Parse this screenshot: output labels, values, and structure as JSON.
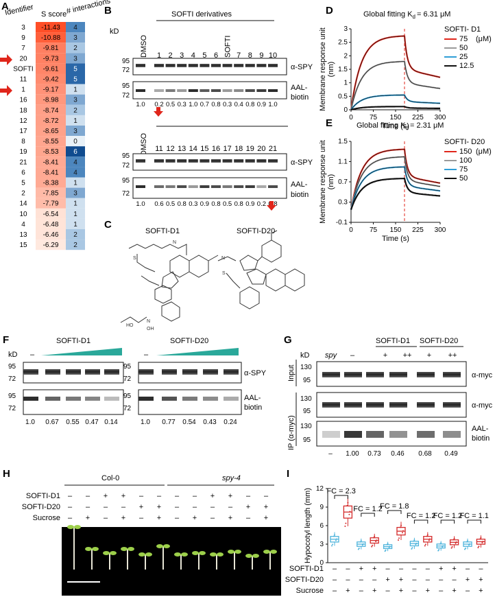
{
  "panels": {
    "A": "A",
    "B": "B",
    "C": "C",
    "D": "D",
    "E": "E",
    "F": "F",
    "G": "G",
    "H": "H",
    "I": "I"
  },
  "panelA": {
    "headers": [
      "Identifier",
      "S score",
      "# interactions"
    ],
    "rows": [
      {
        "id": "3",
        "score": "-11.43",
        "inter": "4"
      },
      {
        "id": "9",
        "score": "-10.88",
        "inter": "3"
      },
      {
        "id": "7",
        "score": "-9.81",
        "inter": "2"
      },
      {
        "id": "20",
        "score": "-9.73",
        "inter": "3"
      },
      {
        "id": "SOFTI",
        "score": "-9.61",
        "inter": "5"
      },
      {
        "id": "11",
        "score": "-9.42",
        "inter": "5"
      },
      {
        "id": "1",
        "score": "-9.17",
        "inter": "1"
      },
      {
        "id": "16",
        "score": "-8.98",
        "inter": "3"
      },
      {
        "id": "18",
        "score": "-8.74",
        "inter": "2"
      },
      {
        "id": "12",
        "score": "-8.72",
        "inter": "1"
      },
      {
        "id": "17",
        "score": "-8.65",
        "inter": "3"
      },
      {
        "id": "8",
        "score": "-8.55",
        "inter": "0"
      },
      {
        "id": "19",
        "score": "-8.53",
        "inter": "6"
      },
      {
        "id": "21",
        "score": "-8.41",
        "inter": "4"
      },
      {
        "id": "6",
        "score": "-8.41",
        "inter": "4"
      },
      {
        "id": "5",
        "score": "-8.38",
        "inter": "1"
      },
      {
        "id": "2",
        "score": "-7.85",
        "inter": "3"
      },
      {
        "id": "14",
        "score": "-7.79",
        "inter": "1"
      },
      {
        "id": "10",
        "score": "-6.54",
        "inter": "1"
      },
      {
        "id": "4",
        "score": "-6.48",
        "inter": "1"
      },
      {
        "id": "13",
        "score": "-6.46",
        "inter": "2"
      },
      {
        "id": "15",
        "score": "-6.29",
        "inter": "2"
      }
    ]
  },
  "panelB": {
    "title": "SOFTI derivatives",
    "kd": "kD",
    "dmso": "DMSO",
    "lanes_top": [
      "1",
      "2",
      "3",
      "4",
      "5",
      "6",
      "SOFTI",
      "7",
      "8",
      "9",
      "10"
    ],
    "lanes_bottom": [
      "11",
      "12",
      "13",
      "14",
      "15",
      "16",
      "17",
      "18",
      "19",
      "20",
      "21"
    ],
    "mw_95": "95",
    "mw_72": "72",
    "spy": "α-SPY",
    "aal": "AAL-",
    "biotin": "biotin",
    "quant_top": [
      "1.0",
      "0.2",
      "0.5",
      "0.3",
      "1.0",
      "0.7",
      "0.8",
      "0.3",
      "0.4",
      "0.8",
      "0.9",
      "1.0"
    ],
    "quant_bottom": [
      "1.0",
      "0.6",
      "0.5",
      "0.8",
      "0.3",
      "0.9",
      "0.8",
      "0.5",
      "0.8",
      "0.9",
      "0.2",
      "0.8"
    ]
  },
  "panelC": {
    "d1": "SOFTI-D1",
    "d20": "SOFTI-D20"
  },
  "panelD": {
    "title": "Global fitting K",
    "sub": "d",
    "kdval": "=  6.31 μM",
    "legend_title": "SOFTI- D1",
    "unit": "(μM)",
    "legend": [
      "75",
      "50",
      "25",
      "12.5"
    ],
    "colors": [
      "#e0261b",
      "#9a9a9a",
      "#2f9ed6",
      "#111111"
    ],
    "xlabel": "Time (s)",
    "ylabel": "Membrane response unit",
    "ylabel2": "(nm)",
    "xticks": [
      "0",
      "75",
      "150",
      "225",
      "300"
    ],
    "yticks": [
      "0",
      "0.5",
      "1",
      "1.5",
      "2",
      "2.5",
      "3"
    ]
  },
  "panelE": {
    "title": "Global fitting K",
    "sub": "d",
    "kdval": "=  2.31 μM",
    "legend_title": "SOFTI- D20",
    "unit": "(μM)",
    "legend": [
      "150",
      "100",
      "75",
      "50"
    ],
    "colors": [
      "#e0261b",
      "#9a9a9a",
      "#2f9ed6",
      "#111111"
    ],
    "xlabel": "Time (s)",
    "ylabel": "Membrane response unit",
    "ylabel2": "(nm)",
    "xticks": [
      "0",
      "75",
      "150",
      "225",
      "300"
    ],
    "yticks": [
      "-0.1",
      "0.3",
      "0.7",
      "1.1",
      "1.5"
    ]
  },
  "panelF": {
    "kd": "kD",
    "d1": "SOFTI-D1",
    "d20": "SOFTI-D20",
    "minus": "–",
    "mw_95": "95",
    "mw_72": "72",
    "spy": "α-SPY",
    "aal": "AAL-",
    "biotin": "biotin",
    "quant_d1": [
      "1.0",
      "0.67",
      "0.55",
      "0.47",
      "0.14"
    ],
    "quant_d20": [
      "1.0",
      "0.77",
      "0.54",
      "0.43",
      "0.24"
    ]
  },
  "panelG": {
    "kd": "kD",
    "spy": "spy",
    "d1": "SOFTI-D1",
    "d20": "SOFTI-D20",
    "cond": [
      "–",
      "+",
      "++",
      "+",
      "++"
    ],
    "input": "Input",
    "ip": "IP (α-myc)",
    "myc": "α-myc",
    "aal": "AAL-",
    "biotin": "biotin",
    "mw": [
      "130",
      "95",
      "130",
      "95",
      "130",
      "95"
    ],
    "quant": [
      "–",
      "1.00",
      "0.73",
      "0.46",
      "0.68",
      "0.49"
    ]
  },
  "panelH": {
    "col0": "Col-0",
    "spy4": "spy-4",
    "rows": [
      "SOFTI-D1",
      "SOFTI-D20",
      "Sucrose"
    ],
    "d1": [
      "–",
      "–",
      "+",
      "+",
      "–",
      "–",
      "–",
      "–",
      "+",
      "+",
      "–",
      "–"
    ],
    "d20": [
      "–",
      "–",
      "–",
      "–",
      "+",
      "+",
      "–",
      "–",
      "–",
      "–",
      "+",
      "+"
    ],
    "suc": [
      "–",
      "+",
      "–",
      "+",
      "–",
      "+",
      "–",
      "+",
      "–",
      "+",
      "–",
      "+"
    ]
  },
  "panelI": {
    "ylabel": "Hypocotyl length (mm)",
    "yticks": [
      "0",
      "3",
      "6",
      "9",
      "12"
    ],
    "fc": [
      "FC = 2.3",
      "FC = 1.2",
      "FC = 1.8",
      "FC = 1.2",
      "FC = 1.2",
      "FC = 1.1"
    ],
    "rows": [
      "SOFTI-D1",
      "SOFTI-D20",
      "Sucrose"
    ],
    "d1": [
      "–",
      "–",
      "+",
      "+",
      "–",
      "–",
      "–",
      "–",
      "+",
      "+",
      "–",
      "–"
    ],
    "d20": [
      "–",
      "–",
      "–",
      "–",
      "+",
      "+",
      "–",
      "–",
      "–",
      "–",
      "+",
      "+"
    ],
    "suc": [
      "–",
      "+",
      "–",
      "+",
      "–",
      "+",
      "–",
      "+",
      "–",
      "+",
      "–",
      "+"
    ],
    "col0": "Col-0",
    "spy4": "spy-4",
    "medians": [
      3.8,
      8.2,
      3.0,
      3.6,
      2.6,
      5.1,
      3.1,
      3.8,
      2.7,
      3.3,
      3.0,
      3.4
    ],
    "colors": {
      "blue": "#4fb4dc",
      "red": "#d42a2a"
    }
  }
}
